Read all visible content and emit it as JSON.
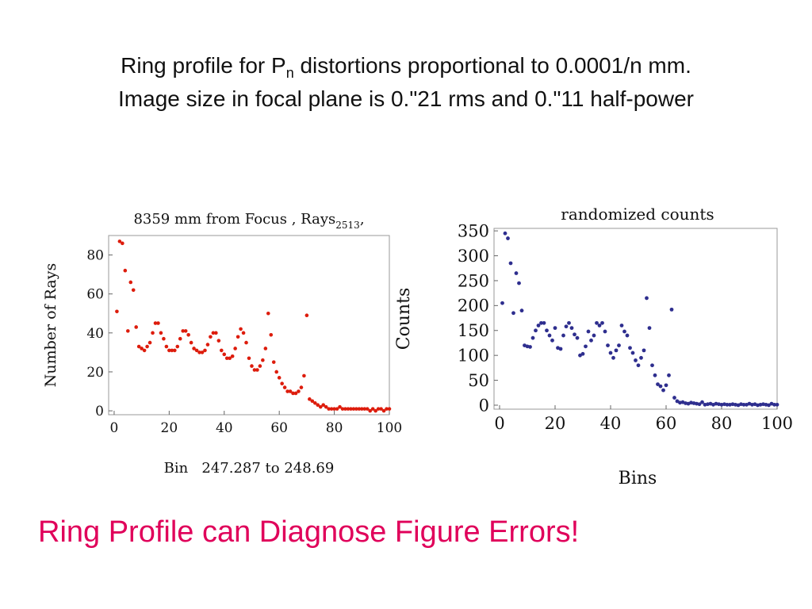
{
  "slide": {
    "title_line1_pre": "Ring profile for  P",
    "title_sub": "n",
    "title_line1_post": " distortions proportional to 0.0001/n mm.",
    "title_line2": "Image size in focal plane is 0.\"21 rms and  0.\"11 half-power",
    "subtitle": "Ring Profile can Diagnose Figure Errors!",
    "subtitle_color": "#e0005a"
  },
  "chart_data": [
    {
      "type": "scatter",
      "title": "8359 mm from Focus , Rays",
      "title_sub": "2513",
      "title_tail": ",",
      "xlabel": "Bin   247.287 to 248.69",
      "ylabel": "Number of Rays",
      "xlim": [
        -2,
        100
      ],
      "ylim": [
        -2,
        90
      ],
      "xticks": [
        0,
        20,
        40,
        60,
        80,
        100
      ],
      "yticks": [
        0,
        20,
        40,
        60,
        80
      ],
      "xtick_labels": [
        "0",
        "20",
        "40",
        "60",
        "80",
        "100"
      ],
      "ytick_labels": [
        "0",
        "20",
        "40",
        "60",
        "80"
      ],
      "marker_color": "#dd1c0c",
      "series": [
        {
          "x": [
            1,
            2,
            3,
            4,
            5,
            6,
            7,
            8,
            9,
            10,
            11,
            12,
            13,
            14,
            15,
            16,
            17,
            18,
            19,
            20,
            21,
            22,
            23,
            24,
            25,
            26,
            27,
            28,
            29,
            30,
            31,
            32,
            33,
            34,
            35,
            36,
            37,
            38,
            39,
            40,
            41,
            42,
            43,
            44,
            45,
            46,
            47,
            48,
            49,
            50,
            51,
            52,
            53,
            54,
            55,
            56,
            57,
            58,
            59,
            60,
            61,
            62,
            63,
            64,
            65,
            66,
            67,
            68,
            69,
            70,
            71,
            72,
            73,
            74,
            75,
            76,
            77,
            78,
            79,
            80,
            81,
            82,
            83,
            84,
            85,
            86,
            87,
            88,
            89,
            90,
            91,
            92,
            93,
            94,
            95,
            96,
            97,
            98,
            99,
            100
          ],
          "y": [
            51,
            87,
            86,
            72,
            41,
            66,
            62,
            43,
            33,
            32,
            31,
            33,
            35,
            40,
            45,
            45,
            40,
            37,
            33,
            31,
            31,
            31,
            33,
            37,
            41,
            41,
            39,
            35,
            32,
            31,
            30,
            30,
            31,
            34,
            38,
            40,
            40,
            36,
            31,
            29,
            27,
            27,
            28,
            32,
            38,
            42,
            40,
            35,
            27,
            23,
            21,
            21,
            23,
            26,
            32,
            50,
            39,
            25,
            20,
            17,
            14,
            12,
            10,
            10,
            9,
            9,
            10,
            12,
            18,
            49,
            6,
            5,
            4,
            3,
            2,
            3,
            2,
            1,
            1,
            1,
            1,
            2,
            1,
            1,
            1,
            1,
            1,
            1,
            1,
            1,
            1,
            1,
            0,
            1,
            0,
            1,
            1,
            0,
            1,
            1
          ]
        }
      ]
    },
    {
      "type": "scatter",
      "title": "randomized counts",
      "xlabel": "Bins",
      "ylabel": "Counts",
      "xlim": [
        -2,
        100
      ],
      "ylim": [
        -8,
        355
      ],
      "xticks": [
        0,
        20,
        40,
        60,
        80,
        100
      ],
      "yticks": [
        0,
        50,
        100,
        150,
        200,
        250,
        300,
        350
      ],
      "xtick_labels": [
        "0",
        "20",
        "40",
        "60",
        "80",
        "100"
      ],
      "ytick_labels": [
        "0",
        "50",
        "100",
        "150",
        "200",
        "250",
        "300",
        "350"
      ],
      "marker_color": "#2e2e8e",
      "series": [
        {
          "x": [
            1,
            2,
            3,
            4,
            5,
            6,
            7,
            8,
            9,
            10,
            11,
            12,
            13,
            14,
            15,
            16,
            17,
            18,
            19,
            20,
            21,
            22,
            23,
            24,
            25,
            26,
            27,
            28,
            29,
            30,
            31,
            32,
            33,
            34,
            35,
            36,
            37,
            38,
            39,
            40,
            41,
            42,
            43,
            44,
            45,
            46,
            47,
            48,
            49,
            50,
            51,
            52,
            53,
            54,
            55,
            56,
            57,
            58,
            59,
            60,
            61,
            62,
            63,
            64,
            65,
            66,
            67,
            68,
            69,
            70,
            71,
            72,
            73,
            74,
            75,
            76,
            77,
            78,
            79,
            80,
            81,
            82,
            83,
            84,
            85,
            86,
            87,
            88,
            89,
            90,
            91,
            92,
            93,
            94,
            95,
            96,
            97,
            98,
            99,
            100
          ],
          "y": [
            205,
            345,
            335,
            285,
            185,
            265,
            245,
            190,
            120,
            118,
            117,
            135,
            150,
            160,
            165,
            165,
            150,
            140,
            130,
            155,
            115,
            113,
            140,
            158,
            165,
            155,
            142,
            135,
            100,
            103,
            118,
            148,
            130,
            140,
            165,
            160,
            165,
            148,
            120,
            105,
            95,
            110,
            120,
            160,
            148,
            140,
            115,
            105,
            90,
            80,
            95,
            110,
            215,
            155,
            80,
            60,
            42,
            38,
            30,
            40,
            60,
            192,
            15,
            8,
            5,
            6,
            4,
            3,
            5,
            4,
            3,
            2,
            6,
            1,
            2,
            3,
            1,
            3,
            2,
            1,
            2,
            1,
            1,
            2,
            1,
            0,
            2,
            1,
            1,
            3,
            1,
            2,
            0,
            1,
            2,
            1,
            0,
            3,
            1,
            1
          ]
        }
      ]
    }
  ]
}
